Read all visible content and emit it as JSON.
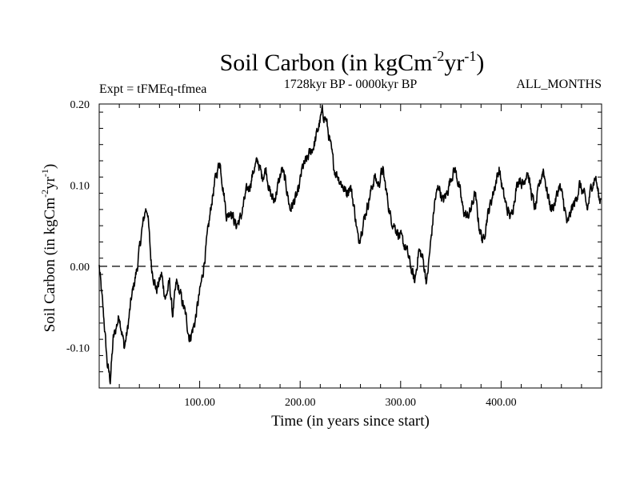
{
  "chart_data": {
    "type": "line",
    "title": "Soil Carbon (in kgCm",
    "title_sup1": "-2",
    "title_mid": "yr",
    "title_sup2": "-1",
    "title_end": ")",
    "subtitle_left": "Expt = tFMEq-tfmea",
    "subtitle_center": "1728kyr BP - 0000kyr BP",
    "subtitle_right": "ALL_MONTHS",
    "xlabel": "Time (in years since start)",
    "ylabel_parts": [
      "Soil Carbon (in kgCm",
      "-2",
      "yr",
      "-1",
      ")"
    ],
    "xlim": [
      0,
      500
    ],
    "ylim": [
      -0.15,
      0.2
    ],
    "xticks": [
      100,
      200,
      300,
      400
    ],
    "xtick_labels": [
      "100.00",
      "200.00",
      "300.00",
      "400.00"
    ],
    "yticks": [
      -0.1,
      0.0,
      0.1,
      0.2
    ],
    "ytick_labels": [
      "-0.10",
      "0.00",
      "0.10",
      "0.20"
    ],
    "reference_line": {
      "y": 0.0,
      "style": "dashed"
    },
    "series": [
      {
        "name": "Soil Carbon",
        "anchors_x": [
          0,
          5,
          8,
          11,
          14,
          20,
          25,
          28,
          32,
          38,
          42,
          46,
          48,
          52,
          57,
          62,
          66,
          70,
          73,
          77,
          82,
          86,
          90,
          95,
          99,
          103,
          107,
          112,
          116,
          120,
          124,
          127,
          131,
          136,
          141,
          146,
          150,
          154,
          158,
          162,
          166,
          170,
          174,
          178,
          182,
          186,
          190,
          194,
          198,
          202,
          206,
          210,
          214,
          218,
          222,
          226,
          230,
          234,
          238,
          242,
          246,
          250,
          254,
          258,
          262,
          266,
          270,
          274,
          278,
          282,
          286,
          290,
          294,
          298,
          302,
          306,
          310,
          314,
          318,
          322,
          326,
          330,
          334,
          338,
          342,
          346,
          350,
          354,
          358,
          362,
          366,
          370,
          374,
          378,
          382,
          386,
          390,
          394,
          398,
          402,
          406,
          410,
          414,
          418,
          422,
          426,
          430,
          434,
          438,
          442,
          446,
          450,
          454,
          458,
          462,
          466,
          470,
          474,
          478,
          482,
          486,
          490,
          494,
          498,
          500
        ],
        "anchors_y": [
          0.0,
          -0.07,
          -0.12,
          -0.14,
          -0.09,
          -0.06,
          -0.1,
          -0.08,
          -0.04,
          0.0,
          0.04,
          0.07,
          0.07,
          0.0,
          -0.03,
          -0.01,
          -0.04,
          -0.02,
          -0.06,
          -0.02,
          -0.04,
          -0.06,
          -0.09,
          -0.07,
          -0.04,
          -0.01,
          0.03,
          0.08,
          0.11,
          0.13,
          0.09,
          0.06,
          0.07,
          0.05,
          0.06,
          0.09,
          0.1,
          0.12,
          0.13,
          0.11,
          0.12,
          0.09,
          0.08,
          0.1,
          0.12,
          0.1,
          0.07,
          0.08,
          0.09,
          0.12,
          0.13,
          0.14,
          0.15,
          0.17,
          0.19,
          0.18,
          0.15,
          0.12,
          0.11,
          0.1,
          0.09,
          0.1,
          0.07,
          0.03,
          0.05,
          0.07,
          0.09,
          0.11,
          0.1,
          0.12,
          0.09,
          0.06,
          0.05,
          0.04,
          0.03,
          0.02,
          0.0,
          -0.02,
          0.02,
          0.01,
          -0.02,
          0.03,
          0.08,
          0.1,
          0.08,
          0.09,
          0.11,
          0.12,
          0.1,
          0.07,
          0.06,
          0.07,
          0.09,
          0.05,
          0.03,
          0.06,
          0.08,
          0.1,
          0.12,
          0.09,
          0.07,
          0.06,
          0.09,
          0.11,
          0.1,
          0.12,
          0.09,
          0.07,
          0.1,
          0.12,
          0.09,
          0.07,
          0.08,
          0.1,
          0.08,
          0.05,
          0.07,
          0.08,
          0.1,
          0.09,
          0.07,
          0.1,
          0.11,
          0.08,
          0.09
        ],
        "noise_amplitude": 0.013
      }
    ]
  }
}
